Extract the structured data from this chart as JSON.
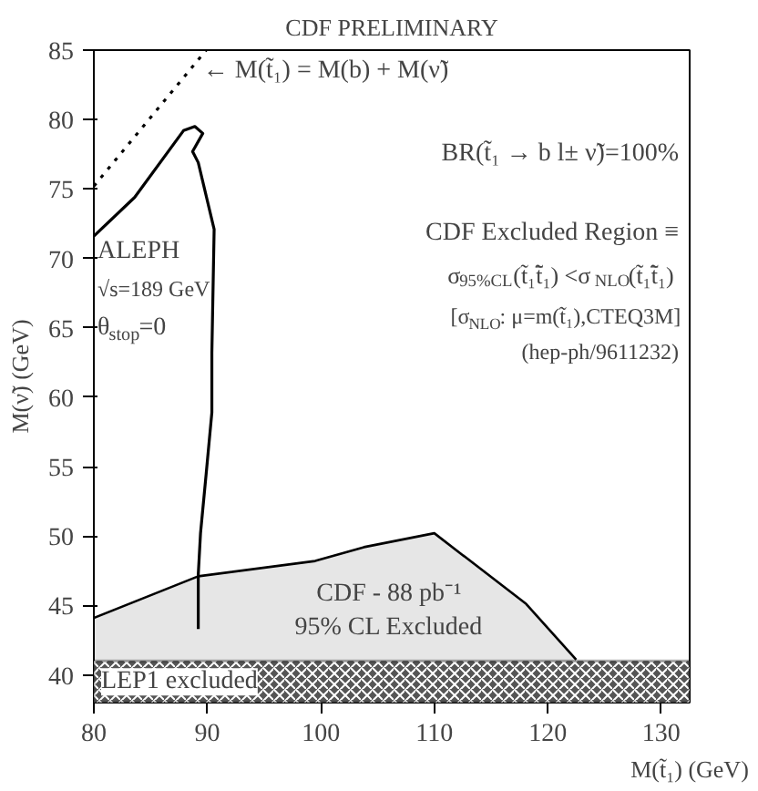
{
  "chart_data": {
    "type": "line",
    "title": "CDF PRELIMINARY",
    "xlabel": "M(t̃₁) (GeV)",
    "ylabel": "M(ν̃) (GeV)",
    "xlim": [
      80,
      132.5
    ],
    "ylim": [
      38,
      85
    ],
    "xticks": [
      80,
      90,
      100,
      110,
      120,
      130
    ],
    "yticks": [
      40,
      45,
      50,
      55,
      60,
      65,
      70,
      75,
      80,
      85
    ],
    "grid": false,
    "series": [
      {
        "type": "area",
        "color": "#e6e6e6",
        "x": [
          80,
          89.2,
          99.5,
          103.8,
          110,
          118.1,
          122.5
        ],
        "values": [
          44.1,
          47.1,
          48.2,
          49.2,
          50.2,
          45.1,
          41.1
        ]
      },
      {
        "color": "#000000",
        "x": [
          80,
          83.6,
          87.9,
          88.9,
          89.6,
          88.7,
          89.2,
          90.6,
          90.4,
          90.4,
          89.9,
          89.4,
          89.2,
          89.2
        ],
        "values": [
          71.6,
          74.4,
          79.2,
          79.5,
          79.0,
          77.7,
          76.9,
          72.1,
          63.2,
          58.9,
          54.5,
          50.2,
          47.2,
          43.3
        ]
      },
      {
        "color": "#000000",
        "line_style": "dotted",
        "x": [
          80,
          89.9
        ],
        "values": [
          75.2,
          85
        ]
      }
    ],
    "bands": [
      {
        "axis": "y",
        "from": 38,
        "to": 41,
        "label": "LEP1 excluded",
        "color": "#555555"
      }
    ],
    "annotations": [
      {
        "text": "← M(t̃₁) = M(b) + M(ν̃)",
        "x": 89.3,
        "y": 83.5
      },
      "BR(t̃₁ → b l± ν̃)=100%",
      "CDF Excluded Region ≡",
      "σ$_{95%CL}$(t̃₁t̃̄₁) <σ$_{NLO}$(t̃₁t̃̄₁)",
      "[σ$_{NLO}$: μ=m(t̃₁),CTEQ3M]",
      "(hep-ph/9611232)",
      "ALEPH",
      "√s=189 GeV",
      "θ$_{stop}$=0",
      "CDF - 88 pb⁻¹",
      "95% CL Excluded"
    ]
  }
}
